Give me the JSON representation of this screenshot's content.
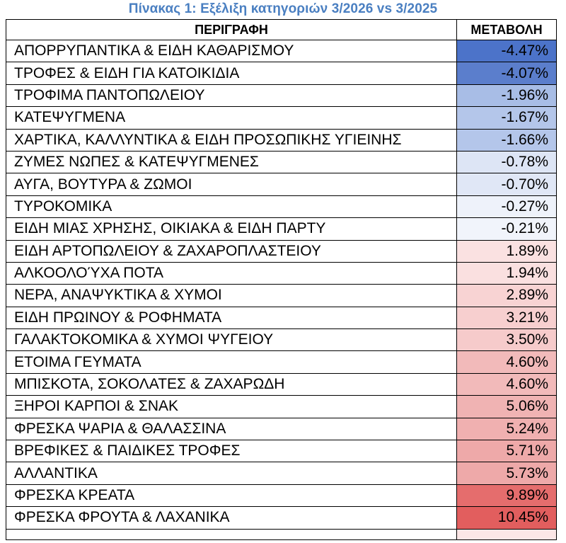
{
  "table": {
    "caption": "Πίνακας 1: Εξέλιξη κατηγοριών 3/2026 vs 3/2025",
    "headers": {
      "description": "ΠΕΡΙΓΡΑΦΗ",
      "change": "ΜΕΤΑΒΟΛΗ"
    },
    "rows": [
      {
        "description": "ΑΠΟΡΡΥΠΑΝΤΙΚΑ & ΕΙΔΗ ΚΑΘΑΡΙΣΜΟΥ",
        "change": "-4.47%",
        "color": "#4c73c9"
      },
      {
        "description": "ΤΡΟΦΕΣ & ΕΙΔΗ ΓΙΑ ΚΑΤΟΙΚΙΔΙΑ",
        "change": "-4.07%",
        "color": "#5b7ecc"
      },
      {
        "description": "ΤΡΟΦΙΜΑ ΠΑΝΤΟΠΩΛΕΙΟΥ",
        "change": "-1.96%",
        "color": "#a8bde6"
      },
      {
        "description": "ΚΑΤΕΨΥΓΜΕΝΑ",
        "change": "-1.67%",
        "color": "#b4c6ea"
      },
      {
        "description": "ΧΑΡΤΙΚΑ, ΚΑΛΛΥΝΤΙΚΑ & ΕΙΔΗ ΠΡΟΣΩΠΙΚΗΣ ΥΓΙΕΙΝΗΣ",
        "change": "-1.66%",
        "color": "#b4c6ea"
      },
      {
        "description": "ΖΥΜΕΣ ΝΩΠΕΣ & ΚΑΤΕΨΥΓΜΕΝΕΣ",
        "change": "-0.78%",
        "color": "#dde5f5"
      },
      {
        "description": "ΑΥΓΑ, ΒΟΥΤΥΡΑ & ΖΩΜΟΙ",
        "change": "-0.70%",
        "color": "#e0e7f6"
      },
      {
        "description": "ΤΥΡΟΚΟΜΙΚΑ",
        "change": "-0.27%",
        "color": "#eef2fa"
      },
      {
        "description": "ΕΙΔΗ ΜΙΑΣ ΧΡΗΣΗΣ, ΟΙΚΙΑΚΑ & ΕΙΔΗ ΠΑΡΤΥ",
        "change": "-0.21%",
        "color": "#f1f4fb"
      },
      {
        "description": "ΕΙΔΗ ΑΡΤΟΠΩΛΕΙΟΥ & ΖΑΧΑΡΟΠΛΑΣΤΕΙΟΥ",
        "change": "1.89%",
        "color": "#fae1e1"
      },
      {
        "description": "ΑΛΚΟΟΛΟΎΧΑ ΠΟΤΑ",
        "change": "1.94%",
        "color": "#fae0e0"
      },
      {
        "description": "ΝΕΡΑ, ΑΝΑΨΥΚΤΙΚΑ & ΧΥΜΟΙ",
        "change": "2.89%",
        "color": "#f8d3d3"
      },
      {
        "description": "ΕΙΔΗ ΠΡΩΙΝΟΥ & ΡΟΦΗΜΑΤΑ",
        "change": "3.21%",
        "color": "#f7cfcf"
      },
      {
        "description": "ΓΑΛΑΚΤΟΚΟΜΙΚΑ & ΧΥΜΟΙ ΨΥΓΕΙΟΥ",
        "change": "3.50%",
        "color": "#f6cbcb"
      },
      {
        "description": "ΕΤΟΙΜΑ ΓΕΥΜΑΤΑ",
        "change": "4.60%",
        "color": "#f2baba"
      },
      {
        "description": "ΜΠΙΣΚΟΤΑ, ΣΟΚΟΛΑΤΕΣ & ΖΑΧΑΡΩΔΗ",
        "change": "4.60%",
        "color": "#f2baba"
      },
      {
        "description": "ΞΗΡΟΙ ΚΑΡΠΟΙ & ΣΝΑΚ",
        "change": "5.06%",
        "color": "#f0b3b3"
      },
      {
        "description": "ΦΡΕΣΚΑ ΨΑΡΙΑ & ΘΑΛΑΣΣΙΝΑ",
        "change": "5.24%",
        "color": "#f0b0b0"
      },
      {
        "description": "ΒΡΕΦΙΚΕΣ & ΠΑΙΔΙΚΕΣ ΤΡΟΦΕΣ",
        "change": "5.71%",
        "color": "#eea9a9"
      },
      {
        "description": "ΑΛΛΑΝΤΙΚΑ",
        "change": "5.73%",
        "color": "#eea9a9"
      },
      {
        "description": "ΦΡΕΣΚΑ ΚΡΕΑΤΑ",
        "change": "9.89%",
        "color": "#e56d6d"
      },
      {
        "description": "ΦΡΕΣΚΑ ΦΡΟΥΤΑ & ΛΑΧΑΝΙΚΑ",
        "change": "10.45%",
        "color": "#e25e5e"
      }
    ]
  }
}
